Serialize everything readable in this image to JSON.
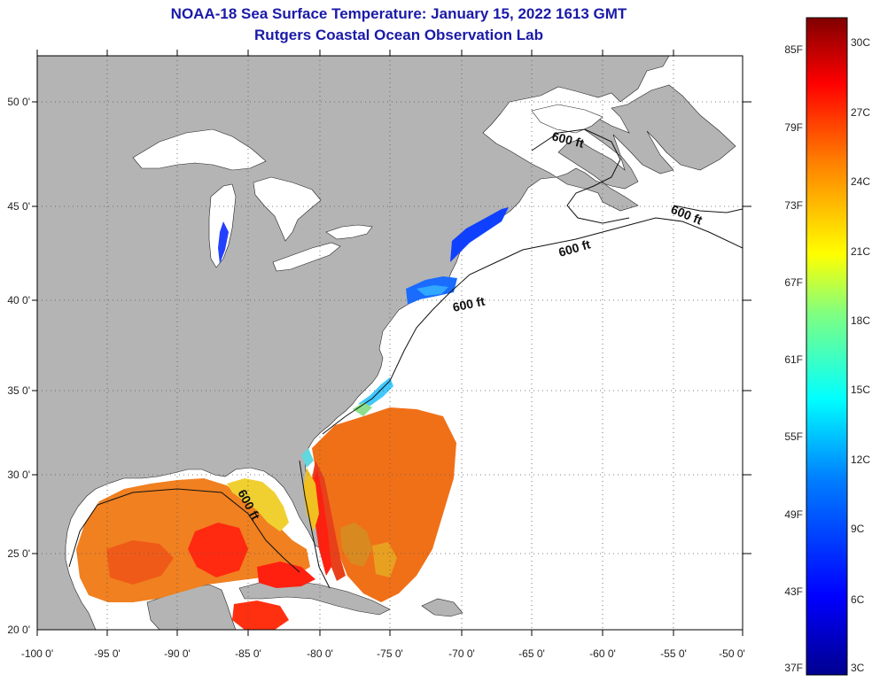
{
  "title": "NOAA-18 Sea Surface Temperature:  January 15, 2022 1613 GMT",
  "subtitle": "Rutgers Coastal Ocean Observation Lab",
  "map": {
    "lon_range": [
      -100,
      -50
    ],
    "lat_range": [
      20,
      52
    ],
    "lon_ticks": [
      "-100 0'",
      "-95 0'",
      "-90 0'",
      "-85 0'",
      "-80 0'",
      "-75 0'",
      "-70 0'",
      "-65 0'",
      "-60 0'",
      "-55 0'",
      "-50 0'"
    ],
    "lat_ticks": [
      "20 0'",
      "25 0'",
      "30 0'",
      "35 0'",
      "40 0'",
      "45 0'",
      "50 0'"
    ],
    "contour_label": "600 ft",
    "colors": {
      "land": "#b4b4b4",
      "ocean_nodata": "#ffffff",
      "grid": "#555555"
    }
  },
  "colorbar": {
    "fahrenheit_labels": [
      "85F",
      "79F",
      "73F",
      "67F",
      "61F",
      "55F",
      "49F",
      "43F",
      "37F"
    ],
    "celsius_labels": [
      "30C",
      "27C",
      "24C",
      "21C",
      "18C",
      "15C",
      "12C",
      "9C",
      "6C",
      "3C"
    ],
    "colormap": [
      "#00008f",
      "#0000ff",
      "#0080ff",
      "#00ffff",
      "#80ff80",
      "#ffff00",
      "#ff8000",
      "#ff0000",
      "#800000"
    ]
  }
}
